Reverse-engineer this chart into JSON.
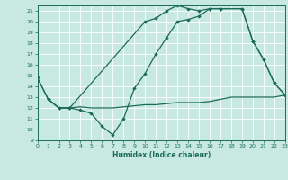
{
  "xlabel": "Humidex (Indice chaleur)",
  "bg_color": "#c8e8e2",
  "line_color": "#1a6b5a",
  "xlim": [
    0,
    23
  ],
  "ylim": [
    9,
    21.5
  ],
  "yticks": [
    9,
    10,
    11,
    12,
    13,
    14,
    15,
    16,
    17,
    18,
    19,
    20,
    21
  ],
  "xticks": [
    0,
    1,
    2,
    3,
    4,
    5,
    6,
    7,
    8,
    9,
    10,
    11,
    12,
    13,
    14,
    15,
    16,
    17,
    18,
    19,
    20,
    21,
    22,
    23
  ],
  "curve1_x": [
    0,
    1,
    2,
    3,
    4,
    5,
    6,
    7,
    8,
    9,
    10,
    11,
    12,
    13,
    14,
    15,
    16,
    17,
    18,
    19,
    20,
    21,
    22,
    23
  ],
  "curve1_y": [
    14.8,
    12.8,
    12.0,
    12.0,
    12.1,
    12.0,
    12.0,
    12.0,
    12.1,
    12.2,
    12.3,
    12.3,
    12.4,
    12.5,
    12.5,
    12.5,
    12.6,
    12.8,
    13.0,
    13.0,
    13.0,
    13.0,
    13.0,
    13.2
  ],
  "curve2_x": [
    1,
    2,
    3,
    4,
    5,
    6,
    7,
    8,
    9,
    10,
    11,
    12,
    13,
    14,
    15,
    16,
    17,
    19,
    20,
    21,
    22,
    23
  ],
  "curve2_y": [
    12.8,
    12.0,
    12.0,
    11.8,
    11.5,
    10.3,
    9.5,
    11.0,
    13.8,
    15.2,
    17.0,
    18.5,
    20.0,
    20.2,
    20.5,
    21.2,
    21.2,
    21.2,
    18.2,
    16.5,
    14.3,
    13.2
  ],
  "curve3_x": [
    0,
    1,
    2,
    3,
    10,
    11,
    12,
    13,
    14,
    15,
    16,
    17,
    19,
    20,
    21,
    22,
    23
  ],
  "curve3_y": [
    14.8,
    12.8,
    12.0,
    12.0,
    20.0,
    20.3,
    21.0,
    21.5,
    21.2,
    21.0,
    21.2,
    21.2,
    21.2,
    18.2,
    16.5,
    14.3,
    13.2
  ]
}
